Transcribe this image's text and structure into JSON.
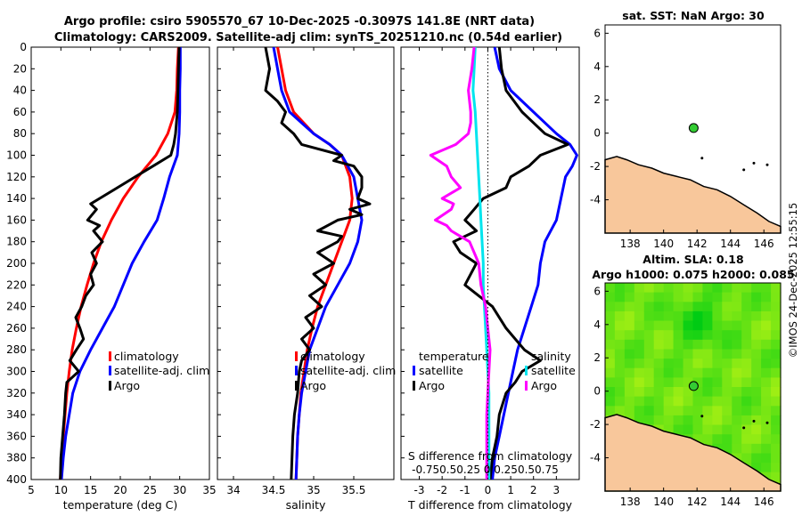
{
  "titles": {
    "main_line1": "Argo profile: csiro 5905570_67 10-Dec-2025 -0.3097S 141.8E (NRT data)",
    "main_line2": "Climatology: CARS2009. Satellite-adj clim: synTS_20251210.nc (0.54d earlier)",
    "sst": "sat. SST: NaN Argo: 30",
    "sla_line1": "Altim. SLA: 0.18",
    "sla_line2": "Argo h1000: 0.075 h2000: 0.085",
    "footer": "©IMOS 24-Dec-2025 12:55:15"
  },
  "colors": {
    "climatology": "#ff0000",
    "satellite": "#0000ff",
    "argo": "#000000",
    "t_diff": "#ff00ff",
    "s_diff": "#00e5ee",
    "land": "#f8c79b",
    "marker": "#33cc33"
  },
  "chart_data": [
    {
      "type": "line",
      "panel": "temperature",
      "xlabel": "temperature (deg C)",
      "ylabel": "depth",
      "xlim": [
        5,
        35
      ],
      "ylim": [
        0,
        400
      ],
      "x_ticks": [
        5,
        10,
        15,
        20,
        25,
        30,
        35
      ],
      "y_ticks": [
        0,
        20,
        40,
        60,
        80,
        100,
        120,
        140,
        160,
        180,
        200,
        220,
        240,
        260,
        280,
        300,
        320,
        340,
        360,
        380,
        400
      ],
      "legend": [
        "climatology",
        "satellite-adj. clim",
        "Argo"
      ],
      "series": [
        {
          "name": "climatology",
          "depth": [
            0,
            20,
            40,
            60,
            80,
            100,
            120,
            140,
            160,
            180,
            200,
            220,
            240,
            260,
            280,
            300,
            320,
            340,
            360,
            380,
            400
          ],
          "values": [
            29.8,
            29.6,
            29.5,
            29.2,
            28.0,
            26.0,
            23.0,
            20.5,
            18.5,
            16.8,
            15.5,
            14.4,
            13.4,
            12.6,
            11.9,
            11.4,
            11.0,
            10.7,
            10.4,
            10.1,
            9.9
          ]
        },
        {
          "name": "satellite-adj. clim",
          "depth": [
            0,
            20,
            40,
            60,
            80,
            100,
            120,
            140,
            160,
            180,
            200,
            220,
            240,
            260,
            280,
            300,
            320,
            340,
            360,
            380,
            400
          ],
          "values": [
            30.1,
            30.1,
            30.0,
            30.0,
            29.9,
            29.6,
            28.3,
            27.3,
            26.2,
            24.0,
            22.0,
            20.5,
            19.0,
            17.0,
            15.0,
            13.2,
            12.0,
            11.4,
            10.8,
            10.4,
            10.1
          ]
        },
        {
          "name": "Argo",
          "depth": [
            0,
            20,
            40,
            60,
            80,
            90,
            100,
            110,
            120,
            130,
            140,
            145,
            150,
            160,
            165,
            170,
            180,
            190,
            200,
            210,
            220,
            230,
            240,
            250,
            260,
            270,
            280,
            290,
            300,
            310,
            320,
            340,
            360,
            380,
            400
          ],
          "values": [
            29.9,
            29.8,
            29.7,
            29.6,
            29.3,
            29.0,
            28.5,
            25.5,
            22.5,
            19.5,
            16.5,
            15.0,
            16.0,
            14.5,
            16.5,
            15.5,
            17.0,
            15.2,
            16.0,
            15.0,
            15.5,
            14.2,
            13.5,
            12.5,
            13.2,
            13.8,
            12.6,
            11.5,
            13.0,
            11.0,
            10.8,
            10.6,
            10.3,
            10.0,
            9.9
          ]
        }
      ]
    },
    {
      "type": "line",
      "panel": "salinity",
      "xlabel": "salinity",
      "xlim": [
        33.8,
        36.0
      ],
      "ylim": [
        0,
        400
      ],
      "x_ticks": [
        34,
        34.5,
        35,
        35.5
      ],
      "legend": [
        "climatology",
        "satellite-adj. clim",
        "Argo"
      ],
      "series": [
        {
          "name": "climatology",
          "depth": [
            0,
            20,
            40,
            60,
            80,
            90,
            100,
            120,
            140,
            160,
            180,
            200,
            220,
            240,
            260,
            280,
            300,
            320,
            340,
            360,
            380,
            400
          ],
          "values": [
            34.55,
            34.6,
            34.65,
            34.75,
            35.0,
            35.2,
            35.35,
            35.45,
            35.48,
            35.45,
            35.35,
            35.25,
            35.15,
            35.05,
            34.98,
            34.92,
            34.88,
            34.84,
            34.82,
            34.8,
            34.79,
            34.78
          ]
        },
        {
          "name": "satellite-adj. clim",
          "depth": [
            0,
            20,
            40,
            60,
            70,
            80,
            90,
            100,
            120,
            140,
            160,
            180,
            200,
            220,
            240,
            260,
            280,
            300,
            320,
            340,
            360,
            380,
            400
          ],
          "values": [
            34.5,
            34.55,
            34.6,
            34.7,
            34.85,
            35.0,
            35.2,
            35.35,
            35.5,
            35.55,
            35.6,
            35.55,
            35.45,
            35.3,
            35.15,
            35.05,
            34.95,
            34.9,
            34.85,
            34.82,
            34.8,
            34.79,
            34.78
          ]
        },
        {
          "name": "Argo",
          "depth": [
            0,
            20,
            40,
            50,
            60,
            70,
            80,
            90,
            100,
            105,
            110,
            120,
            130,
            140,
            145,
            150,
            155,
            160,
            170,
            175,
            180,
            190,
            200,
            210,
            220,
            230,
            240,
            250,
            260,
            270,
            280,
            290,
            300,
            320,
            340,
            360,
            380,
            400
          ],
          "values": [
            34.4,
            34.45,
            34.4,
            34.55,
            34.65,
            34.6,
            34.75,
            34.85,
            35.35,
            35.25,
            35.5,
            35.6,
            35.6,
            35.55,
            35.7,
            35.45,
            35.6,
            35.3,
            35.05,
            35.35,
            35.3,
            35.05,
            35.25,
            35.0,
            35.15,
            34.95,
            35.1,
            34.9,
            35.0,
            34.85,
            34.95,
            34.85,
            34.82,
            34.8,
            34.76,
            34.74,
            34.73,
            34.72
          ]
        }
      ]
    },
    {
      "type": "line",
      "panel": "difference",
      "xlabel": "T difference from climatology",
      "xlabel_top": "S difference from climatology",
      "xlim": [
        -3.8,
        4.0
      ],
      "ylim": [
        0,
        400
      ],
      "x_ticks": [
        -3,
        -2,
        -1,
        0,
        1,
        2,
        3
      ],
      "s_ticks": [
        "-0.75",
        "0.5",
        "0.25",
        "0",
        "0.25",
        "0.5",
        "0.75"
      ],
      "legend_temperature": [
        "temperature",
        "satellite",
        "Argo"
      ],
      "legend_salinity": [
        "salinity",
        "satellite",
        "Argo"
      ],
      "series": [
        {
          "name": "T satellite",
          "depth": [
            0,
            20,
            40,
            60,
            80,
            90,
            100,
            110,
            120,
            140,
            160,
            180,
            200,
            220,
            240,
            260,
            280,
            300,
            320,
            340,
            360,
            380,
            400
          ],
          "values": [
            0.3,
            0.5,
            1.0,
            2.0,
            3.0,
            3.6,
            3.9,
            3.7,
            3.4,
            3.2,
            3.0,
            2.5,
            2.3,
            2.2,
            1.9,
            1.6,
            1.3,
            1.1,
            0.9,
            0.7,
            0.5,
            0.3,
            0.2
          ]
        },
        {
          "name": "T Argo",
          "depth": [
            0,
            20,
            40,
            60,
            80,
            90,
            100,
            110,
            120,
            130,
            140,
            150,
            160,
            170,
            180,
            190,
            200,
            220,
            240,
            260,
            280,
            290,
            300,
            310,
            320,
            340,
            360,
            380,
            400
          ],
          "values": [
            0.5,
            0.6,
            0.8,
            1.5,
            2.5,
            3.5,
            2.3,
            1.8,
            1.0,
            0.8,
            -0.2,
            -0.6,
            -1.0,
            -0.5,
            -1.5,
            -1.2,
            -0.5,
            -1.0,
            0.2,
            0.8,
            1.6,
            2.3,
            1.5,
            1.2,
            0.8,
            0.5,
            0.4,
            0.2,
            0.1
          ]
        },
        {
          "name": "S satellite",
          "depth": [
            0,
            20,
            40,
            60,
            80,
            100,
            120,
            140,
            160,
            180,
            200,
            220,
            240,
            260,
            280,
            300,
            320,
            340,
            360,
            380,
            400
          ],
          "values": [
            -0.55,
            -0.6,
            -0.65,
            -0.55,
            -0.5,
            -0.45,
            -0.4,
            -0.35,
            -0.3,
            -0.25,
            -0.2,
            -0.2,
            -0.15,
            -0.1,
            -0.05,
            0.0,
            0.05,
            0.05,
            0.05,
            0.05,
            0.05
          ]
        },
        {
          "name": "S Argo",
          "depth": [
            0,
            20,
            40,
            60,
            70,
            80,
            90,
            100,
            110,
            120,
            130,
            140,
            145,
            150,
            160,
            165,
            170,
            180,
            190,
            200,
            220,
            240,
            260,
            280,
            300,
            320,
            340,
            360,
            380,
            400
          ],
          "values": [
            -0.6,
            -0.7,
            -0.85,
            -0.75,
            -0.75,
            -0.85,
            -1.4,
            -2.5,
            -1.8,
            -1.6,
            -1.2,
            -2.0,
            -1.5,
            -1.6,
            -2.3,
            -1.8,
            -1.6,
            -0.8,
            -0.6,
            -0.4,
            -0.3,
            -0.1,
            0.0,
            0.1,
            0.05,
            0.0,
            -0.05,
            -0.05,
            -0.05,
            -0.05
          ]
        }
      ]
    },
    {
      "type": "scatter",
      "panel": "sst-map",
      "xlim": [
        136.5,
        147
      ],
      "ylim": [
        -6,
        6.5
      ],
      "x_ticks": [
        138,
        140,
        142,
        144,
        146
      ],
      "y_ticks": [
        -4,
        -2,
        0,
        2,
        4,
        6
      ],
      "point": {
        "lon": 141.8,
        "lat": 0.31
      }
    },
    {
      "type": "heatmap",
      "panel": "sla-map",
      "xlim": [
        136.5,
        147
      ],
      "ylim": [
        -6,
        6.5
      ],
      "x_ticks": [
        138,
        140,
        142,
        144,
        146
      ],
      "y_ticks": [
        -4,
        -2,
        0,
        2,
        4,
        6
      ],
      "point": {
        "lon": 141.8,
        "lat": 0.31
      }
    }
  ]
}
